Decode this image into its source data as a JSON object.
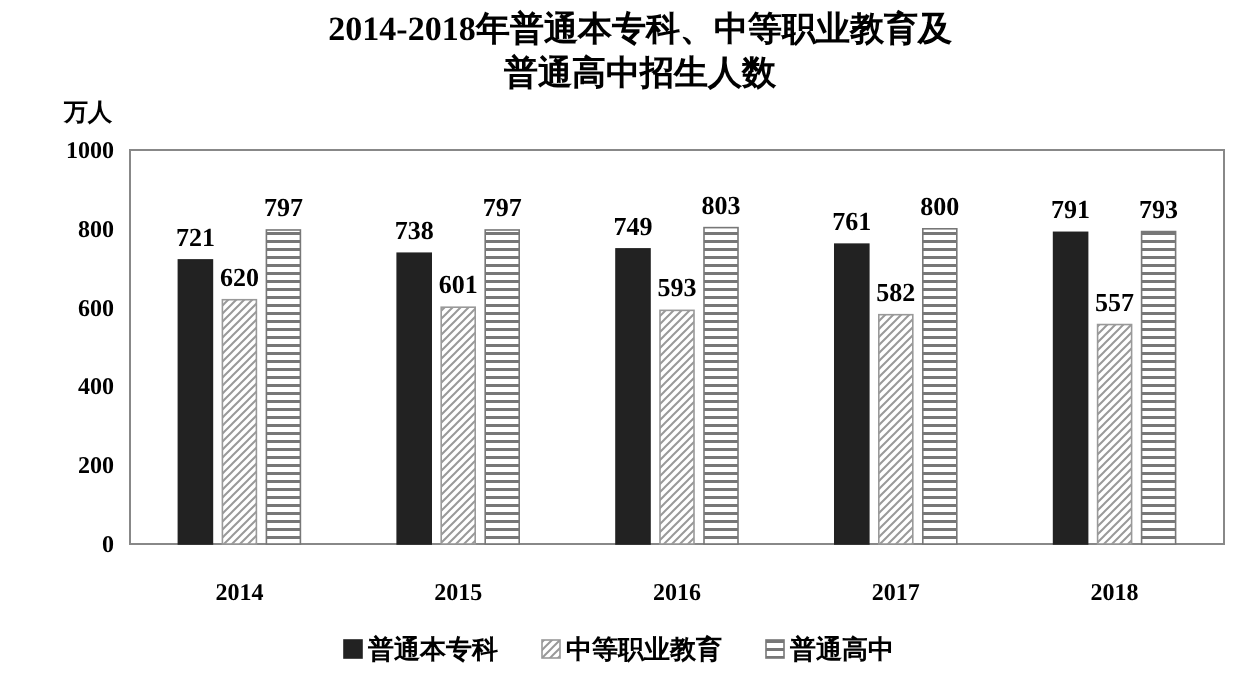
{
  "chart_data": {
    "type": "bar",
    "title": "2014-2018年普通本专科、中等职业教育及",
    "subtitle": "普通高中招生人数",
    "ylabel": "万人",
    "categories": [
      "2014",
      "2015",
      "2016",
      "2017",
      "2018"
    ],
    "series": [
      {
        "name": "普通本专科",
        "color": "#222222",
        "values": [
          721,
          738,
          749,
          761,
          791
        ]
      },
      {
        "name": "中等职业教育",
        "color": "#999999",
        "values": [
          620,
          601,
          593,
          582,
          557
        ]
      },
      {
        "name": "普通高中",
        "color": "#777777",
        "values": [
          797,
          797,
          803,
          800,
          793
        ]
      }
    ],
    "ylim": [
      0,
      1000
    ],
    "yticks": [
      0,
      200,
      400,
      600,
      800,
      1000
    ],
    "data_labels": true,
    "legend": "bottom",
    "grid": false
  }
}
